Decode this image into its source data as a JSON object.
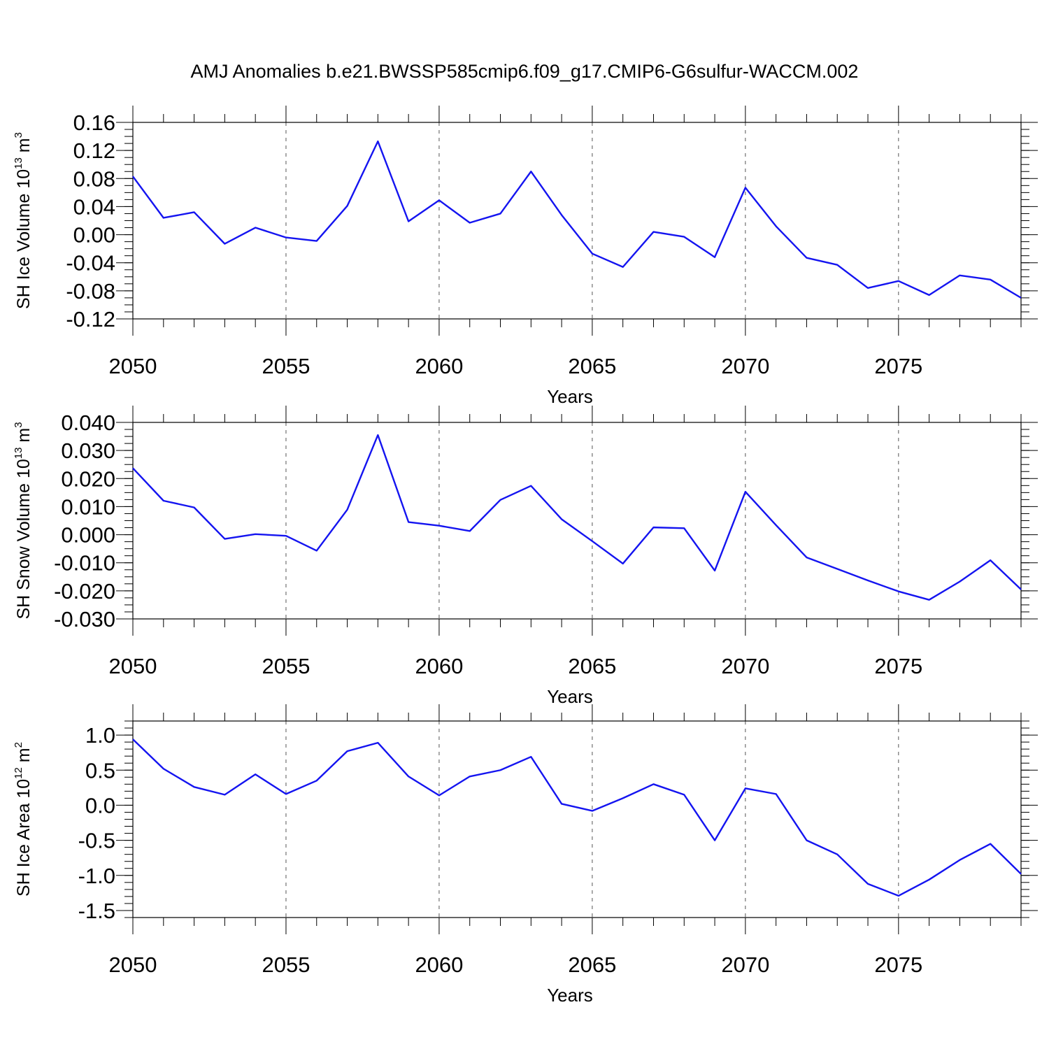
{
  "figure": {
    "title": "AMJ Anomalies b.e21.BWSSP585cmip6.f09_g17.CMIP6-G6sulfur-WACCM.002"
  },
  "colors": {
    "line": "#1414f0",
    "axis": "#000000",
    "grid": "#555555"
  },
  "chart_data": [
    {
      "type": "line",
      "ylabel": {
        "text": "SH Ice Volume 10",
        "exp": "13",
        "unit": "m",
        "unit_exp": "3"
      },
      "xlabel": "Years",
      "x": [
        2050,
        2051,
        2052,
        2053,
        2054,
        2055,
        2056,
        2057,
        2058,
        2059,
        2060,
        2061,
        2062,
        2063,
        2064,
        2065,
        2066,
        2067,
        2068,
        2069,
        2070,
        2071,
        2072,
        2073,
        2074,
        2075,
        2076,
        2077,
        2078,
        2079
      ],
      "series": [
        {
          "values": [
            0.083,
            0.024,
            0.032,
            -0.013,
            0.01,
            -0.004,
            -0.009,
            0.041,
            0.133,
            0.019,
            0.049,
            0.017,
            0.03,
            0.09,
            0.028,
            -0.027,
            -0.046,
            0.004,
            -0.003,
            -0.032,
            0.067,
            0.012,
            -0.033,
            -0.043,
            -0.076,
            -0.066,
            -0.086,
            -0.058,
            -0.064,
            -0.09
          ]
        }
      ],
      "xlim": [
        2050,
        2079
      ],
      "ylim": [
        -0.12,
        0.16
      ],
      "yticks": [
        "0.16",
        "0.12",
        "0.08",
        "0.04",
        "0.00",
        "-0.04",
        "-0.08",
        "-0.12"
      ],
      "yminor": 0.01,
      "xticks": [
        "2050",
        "2055",
        "2060",
        "2065",
        "2070",
        "2075"
      ],
      "grid": "vertical dashed at major x ticks"
    },
    {
      "type": "line",
      "ylabel": {
        "text": "SH Snow Volume 10",
        "exp": "13",
        "unit": "m",
        "unit_exp": "3"
      },
      "xlabel": "Years",
      "x": [
        2050,
        2051,
        2052,
        2053,
        2054,
        2055,
        2056,
        2057,
        2058,
        2059,
        2060,
        2061,
        2062,
        2063,
        2064,
        2065,
        2066,
        2067,
        2068,
        2069,
        2070,
        2071,
        2072,
        2073,
        2074,
        2075,
        2076,
        2077,
        2078,
        2079
      ],
      "series": [
        {
          "values": [
            0.0237,
            0.0121,
            0.0097,
            -0.0015,
            0.0002,
            -0.0004,
            -0.0057,
            0.0089,
            0.0355,
            0.0045,
            0.0032,
            0.0013,
            0.0124,
            0.0174,
            0.0055,
            -0.0023,
            -0.0103,
            0.0026,
            0.0023,
            -0.0128,
            0.0153,
            0.0034,
            -0.0081,
            -0.0122,
            -0.0163,
            -0.0202,
            -0.0232,
            -0.0167,
            -0.0091,
            -0.0195
          ]
        }
      ],
      "xlim": [
        2050,
        2079
      ],
      "ylim": [
        -0.03,
        0.04
      ],
      "yticks": [
        "0.040",
        "0.030",
        "0.020",
        "0.010",
        "0.000",
        "-0.010",
        "-0.020",
        "-0.030"
      ],
      "yminor": 0.0025,
      "xticks": [
        "2050",
        "2055",
        "2060",
        "2065",
        "2070",
        "2075"
      ],
      "grid": "vertical dashed at major x ticks"
    },
    {
      "type": "line",
      "ylabel": {
        "text": "SH Ice Area 10",
        "exp": "12",
        "unit": "m",
        "unit_exp": "2"
      },
      "xlabel": "Years",
      "x": [
        2050,
        2051,
        2052,
        2053,
        2054,
        2055,
        2056,
        2057,
        2058,
        2059,
        2060,
        2061,
        2062,
        2063,
        2064,
        2065,
        2066,
        2067,
        2068,
        2069,
        2070,
        2071,
        2072,
        2073,
        2074,
        2075,
        2076,
        2077,
        2078,
        2079
      ],
      "series": [
        {
          "values": [
            0.94,
            0.52,
            0.26,
            0.15,
            0.44,
            0.16,
            0.35,
            0.77,
            0.89,
            0.41,
            0.14,
            0.41,
            0.5,
            0.69,
            0.02,
            -0.08,
            0.1,
            0.3,
            0.15,
            -0.5,
            0.24,
            0.16,
            -0.5,
            -0.7,
            -1.12,
            -1.29,
            -1.06,
            -0.78,
            -0.55,
            -0.98
          ]
        }
      ],
      "xlim": [
        2050,
        2079
      ],
      "ylim": [
        -1.6,
        1.2
      ],
      "yticks": [
        "1.0",
        "0.5",
        "0.0",
        "-0.5",
        "-1.0",
        "-1.5"
      ],
      "ytick_values": [
        1.0,
        0.5,
        0.0,
        -0.5,
        -1.0,
        -1.5
      ],
      "yminor": 0.1,
      "xticks": [
        "2050",
        "2055",
        "2060",
        "2065",
        "2070",
        "2075"
      ],
      "grid": "vertical dashed at major x ticks"
    }
  ]
}
